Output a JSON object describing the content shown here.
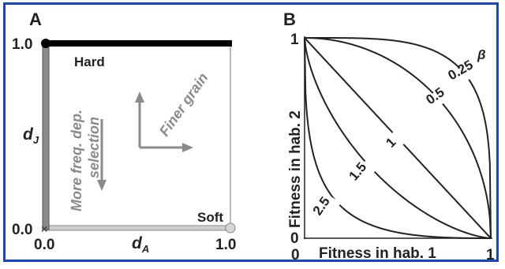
{
  "panel_a": {
    "letter": "A",
    "y_tick_top": "1.0",
    "y_tick_bottom": "0.0",
    "x_tick_left": "0.0",
    "x_tick_right": "1.0",
    "x_label": "d",
    "x_label_sub": "A",
    "y_label": "d",
    "y_label_sub": "J",
    "hard_label": "Hard",
    "soft_label": "Soft",
    "finer_grain": "Finer grain",
    "selection_line1": "More freq. dep.",
    "selection_line2": "selection",
    "origin_mark": "×"
  },
  "panel_b": {
    "letter": "B",
    "y_tick_top": "1",
    "y_tick_bottom": "0",
    "x_tick_left": "0",
    "x_tick_right": "1",
    "x_label": "Fitness in hab. 1",
    "y_label": "Fitness in hab. 2",
    "beta_symbol": "β",
    "curve_labels": [
      "0.25",
      "0.5",
      "1",
      "1.5",
      "2.5"
    ]
  },
  "colors": {
    "frame": "#1a45c8",
    "grey_text": "#8a8a8a",
    "line": "#222222"
  }
}
